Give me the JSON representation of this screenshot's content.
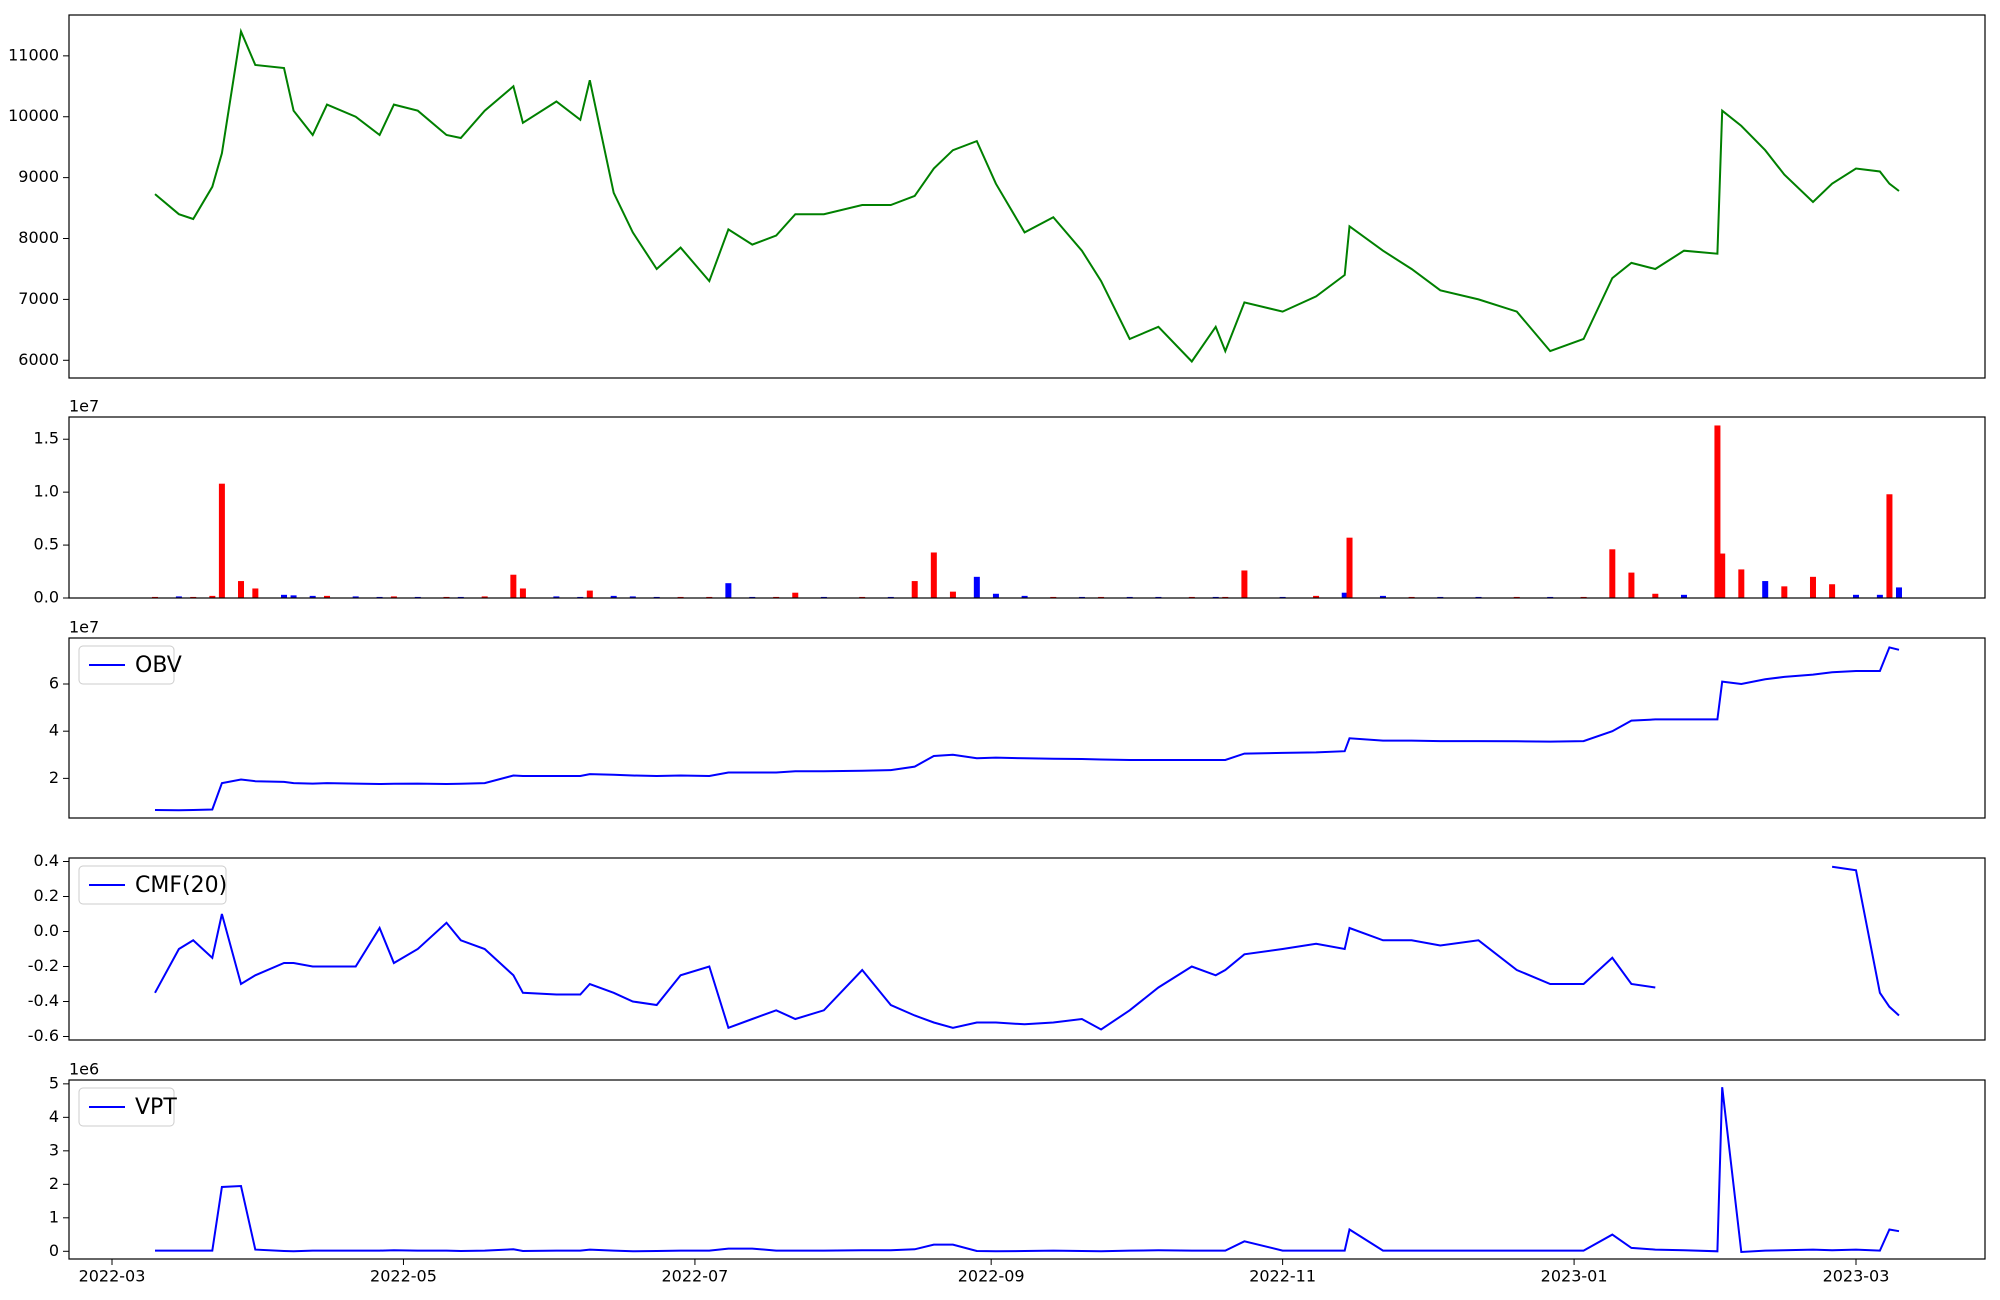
{
  "chart_data": [
    {
      "type": "line",
      "x": [
        "2022-03-10",
        "2022-03-15",
        "2022-03-18",
        "2022-03-22",
        "2022-03-24",
        "2022-03-28",
        "2022-03-31",
        "2022-04-06",
        "2022-04-08",
        "2022-04-12",
        "2022-04-15",
        "2022-04-21",
        "2022-04-26",
        "2022-04-29",
        "2022-05-04",
        "2022-05-10",
        "2022-05-13",
        "2022-05-18",
        "2022-05-24",
        "2022-05-26",
        "2022-06-02",
        "2022-06-07",
        "2022-06-09",
        "2022-06-14",
        "2022-06-18",
        "2022-06-23",
        "2022-06-28",
        "2022-07-04",
        "2022-07-08",
        "2022-07-13",
        "2022-07-18",
        "2022-07-22",
        "2022-07-28",
        "2022-08-05",
        "2022-08-11",
        "2022-08-16",
        "2022-08-20",
        "2022-08-24",
        "2022-08-29",
        "2022-09-02",
        "2022-09-08",
        "2022-09-14",
        "2022-09-20",
        "2022-09-24",
        "2022-09-30",
        "2022-10-06",
        "2022-10-13",
        "2022-10-18",
        "2022-10-20",
        "2022-10-24",
        "2022-11-01",
        "2022-11-08",
        "2022-11-14",
        "2022-11-15",
        "2022-11-22",
        "2022-11-28",
        "2022-12-04",
        "2022-12-12",
        "2022-12-20",
        "2022-12-27",
        "2023-01-03",
        "2023-01-09",
        "2023-01-13",
        "2023-01-18",
        "2023-01-24",
        "2023-01-31",
        "2023-02-01",
        "2023-02-05",
        "2023-02-10",
        "2023-02-14",
        "2023-02-20",
        "2023-02-24",
        "2023-03-01",
        "2023-03-06",
        "2023-03-08",
        "2023-03-10"
      ],
      "series": [
        {
          "color": "#008000",
          "values": [
            8730,
            8400,
            8320,
            8850,
            9400,
            11400,
            10850,
            10800,
            10100,
            9700,
            10200,
            10000,
            9700,
            10200,
            10100,
            9700,
            9650,
            10100,
            10500,
            9900,
            10250,
            9950,
            10600,
            8750,
            8100,
            7500,
            7850,
            7300,
            8150,
            7900,
            8050,
            8400,
            8400,
            8550,
            8550,
            8700,
            9150,
            9450,
            9600,
            8900,
            8100,
            8350,
            7800,
            7300,
            6350,
            6550,
            5980,
            6550,
            6150,
            6950,
            6800,
            7050,
            7400,
            8200,
            7800,
            7500,
            7150,
            7000,
            6800,
            6150,
            6350,
            7350,
            7600,
            7500,
            7800,
            7750,
            10100,
            9850,
            9450,
            9050,
            8600,
            8900,
            9150,
            9100,
            8900,
            8780
          ]
        }
      ],
      "xlim": [
        "2022-02-20",
        "2023-03-28"
      ],
      "ylim": [
        5709,
        11671
      ],
      "yticks": [
        6000,
        7000,
        8000,
        9000,
        10000,
        11000
      ]
    },
    {
      "type": "bar",
      "x": [
        "2022-03-10",
        "2022-03-15",
        "2022-03-18",
        "2022-03-22",
        "2022-03-24",
        "2022-03-28",
        "2022-03-31",
        "2022-04-06",
        "2022-04-08",
        "2022-04-12",
        "2022-04-15",
        "2022-04-21",
        "2022-04-26",
        "2022-04-29",
        "2022-05-04",
        "2022-05-10",
        "2022-05-13",
        "2022-05-18",
        "2022-05-24",
        "2022-05-26",
        "2022-06-02",
        "2022-06-07",
        "2022-06-09",
        "2022-06-14",
        "2022-06-18",
        "2022-06-23",
        "2022-06-28",
        "2022-07-04",
        "2022-07-08",
        "2022-07-13",
        "2022-07-18",
        "2022-07-22",
        "2022-07-28",
        "2022-08-05",
        "2022-08-11",
        "2022-08-16",
        "2022-08-20",
        "2022-08-24",
        "2022-08-29",
        "2022-09-02",
        "2022-09-08",
        "2022-09-14",
        "2022-09-20",
        "2022-09-24",
        "2022-09-30",
        "2022-10-06",
        "2022-10-13",
        "2022-10-18",
        "2022-10-20",
        "2022-10-24",
        "2022-11-01",
        "2022-11-08",
        "2022-11-14",
        "2022-11-15",
        "2022-11-22",
        "2022-11-28",
        "2022-12-04",
        "2022-12-12",
        "2022-12-20",
        "2022-12-27",
        "2023-01-03",
        "2023-01-09",
        "2023-01-13",
        "2023-01-18",
        "2023-01-24",
        "2023-01-31",
        "2023-02-01",
        "2023-02-05",
        "2023-02-10",
        "2023-02-14",
        "2023-02-20",
        "2023-02-24",
        "2023-03-01",
        "2023-03-06",
        "2023-03-08",
        "2023-03-10"
      ],
      "values": [
        100000,
        150000,
        100000,
        200000,
        10800000,
        1600000,
        900000,
        300000,
        250000,
        200000,
        200000,
        150000,
        100000,
        150000,
        100000,
        100000,
        100000,
        150000,
        2200000,
        900000,
        150000,
        100000,
        700000,
        200000,
        150000,
        100000,
        100000,
        100000,
        1400000,
        100000,
        100000,
        500000,
        100000,
        100000,
        100000,
        1600000,
        4300000,
        600000,
        2000000,
        400000,
        200000,
        100000,
        100000,
        100000,
        100000,
        100000,
        100000,
        100000,
        100000,
        2600000,
        100000,
        200000,
        500000,
        5700000,
        200000,
        100000,
        100000,
        100000,
        100000,
        100000,
        100000,
        4600000,
        2400000,
        400000,
        300000,
        16300000,
        4200000,
        2700000,
        1600000,
        1100000,
        2000000,
        1300000,
        300000,
        300000,
        9800000,
        1000000
      ],
      "colors": [
        "#ff0000",
        "#0000ff",
        "#ff0000",
        "#ff0000",
        "#ff0000",
        "#ff0000",
        "#ff0000",
        "#0000ff",
        "#0000ff",
        "#0000ff",
        "#ff0000",
        "#0000ff",
        "#0000ff",
        "#ff0000",
        "#0000ff",
        "#ff0000",
        "#0000ff",
        "#ff0000",
        "#ff0000",
        "#ff0000",
        "#0000ff",
        "#0000ff",
        "#ff0000",
        "#0000ff",
        "#0000ff",
        "#0000ff",
        "#ff0000",
        "#ff0000",
        "#0000ff",
        "#0000ff",
        "#ff0000",
        "#ff0000",
        "#0000ff",
        "#ff0000",
        "#0000ff",
        "#ff0000",
        "#ff0000",
        "#ff0000",
        "#0000ff",
        "#0000ff",
        "#0000ff",
        "#ff0000",
        "#0000ff",
        "#ff0000",
        "#0000ff",
        "#0000ff",
        "#ff0000",
        "#0000ff",
        "#ff0000",
        "#ff0000",
        "#0000ff",
        "#ff0000",
        "#0000ff",
        "#ff0000",
        "#0000ff",
        "#ff0000",
        "#0000ff",
        "#0000ff",
        "#ff0000",
        "#0000ff",
        "#ff0000",
        "#ff0000",
        "#ff0000",
        "#ff0000",
        "#0000ff",
        "#ff0000",
        "#ff0000",
        "#ff0000",
        "#0000ff",
        "#ff0000",
        "#ff0000",
        "#ff0000",
        "#0000ff",
        "#0000ff",
        "#ff0000",
        "#0000ff"
      ],
      "xlim": [
        "2022-02-20",
        "2023-03-28"
      ],
      "ylim": [
        0,
        17100000
      ],
      "offset_label": "1e7",
      "yticks": [
        {
          "value": 0,
          "label": "0.0"
        },
        {
          "value": 5000000,
          "label": "0.5"
        },
        {
          "value": 10000000,
          "label": "1.0"
        },
        {
          "value": 15000000,
          "label": "1.5"
        }
      ]
    },
    {
      "type": "line",
      "x": [
        "2022-03-10",
        "2022-03-15",
        "2022-03-18",
        "2022-03-22",
        "2022-03-24",
        "2022-03-28",
        "2022-03-31",
        "2022-04-06",
        "2022-04-08",
        "2022-04-12",
        "2022-04-15",
        "2022-04-21",
        "2022-04-26",
        "2022-04-29",
        "2022-05-04",
        "2022-05-10",
        "2022-05-13",
        "2022-05-18",
        "2022-05-24",
        "2022-05-26",
        "2022-06-02",
        "2022-06-07",
        "2022-06-09",
        "2022-06-14",
        "2022-06-18",
        "2022-06-23",
        "2022-06-28",
        "2022-07-04",
        "2022-07-08",
        "2022-07-13",
        "2022-07-18",
        "2022-07-22",
        "2022-07-28",
        "2022-08-05",
        "2022-08-11",
        "2022-08-16",
        "2022-08-20",
        "2022-08-24",
        "2022-08-29",
        "2022-09-02",
        "2022-09-08",
        "2022-09-14",
        "2022-09-20",
        "2022-09-24",
        "2022-09-30",
        "2022-10-06",
        "2022-10-13",
        "2022-10-18",
        "2022-10-20",
        "2022-10-24",
        "2022-11-01",
        "2022-11-08",
        "2022-11-14",
        "2022-11-15",
        "2022-11-22",
        "2022-11-28",
        "2022-12-04",
        "2022-12-12",
        "2022-12-20",
        "2022-12-27",
        "2023-01-03",
        "2023-01-09",
        "2023-01-13",
        "2023-01-18",
        "2023-01-24",
        "2023-01-31",
        "2023-02-01",
        "2023-02-05",
        "2023-02-10",
        "2023-02-14",
        "2023-02-20",
        "2023-02-24",
        "2023-03-01",
        "2023-03-06",
        "2023-03-08",
        "2023-03-10"
      ],
      "series": [
        {
          "name": "OBV",
          "color": "#0000ff",
          "values": [
            6600000,
            6500000,
            6600000,
            6800000,
            18000000,
            19500000,
            18800000,
            18500000,
            18000000,
            17800000,
            18000000,
            17800000,
            17600000,
            17700000,
            17800000,
            17600000,
            17700000,
            18000000,
            21200000,
            21000000,
            21000000,
            21000000,
            21800000,
            21500000,
            21200000,
            21000000,
            21200000,
            21000000,
            22500000,
            22500000,
            22500000,
            23000000,
            23000000,
            23200000,
            23500000,
            25000000,
            29500000,
            30000000,
            28500000,
            28800000,
            28500000,
            28300000,
            28200000,
            28000000,
            27800000,
            27800000,
            27800000,
            27800000,
            27800000,
            30500000,
            30800000,
            31000000,
            31500000,
            37000000,
            36000000,
            36000000,
            35800000,
            35800000,
            35700000,
            35600000,
            35800000,
            40000000,
            44500000,
            45000000,
            45000000,
            45000000,
            61000000,
            60000000,
            62000000,
            63000000,
            64000000,
            65000000,
            65500000,
            65500000,
            75500000,
            74500000
          ]
        }
      ],
      "xlim": [
        "2022-02-20",
        "2023-03-28"
      ],
      "ylim": [
        3200000,
        79500000
      ],
      "offset_label": "1e7",
      "yticks": [
        {
          "value": 20000000,
          "label": "2"
        },
        {
          "value": 40000000,
          "label": "4"
        },
        {
          "value": 60000000,
          "label": "6"
        }
      ]
    },
    {
      "type": "line",
      "x": [
        "2022-03-10",
        "2022-03-15",
        "2022-03-18",
        "2022-03-22",
        "2022-03-24",
        "2022-03-28",
        "2022-03-31",
        "2022-04-06",
        "2022-04-08",
        "2022-04-12",
        "2022-04-15",
        "2022-04-21",
        "2022-04-26",
        "2022-04-29",
        "2022-05-04",
        "2022-05-10",
        "2022-05-13",
        "2022-05-18",
        "2022-05-24",
        "2022-05-26",
        "2022-06-02",
        "2022-06-07",
        "2022-06-09",
        "2022-06-14",
        "2022-06-18",
        "2022-06-23",
        "2022-06-28",
        "2022-07-04",
        "2022-07-08",
        "2022-07-13",
        "2022-07-18",
        "2022-07-22",
        "2022-07-28",
        "2022-08-05",
        "2022-08-11",
        "2022-08-16",
        "2022-08-20",
        "2022-08-24",
        "2022-08-29",
        "2022-09-02",
        "2022-09-08",
        "2022-09-14",
        "2022-09-20",
        "2022-09-24",
        "2022-09-30",
        "2022-10-06",
        "2022-10-13",
        "2022-10-18",
        "2022-10-20",
        "2022-10-24",
        "2022-11-01",
        "2022-11-08",
        "2022-11-14",
        "2022-11-15",
        "2022-11-22",
        "2022-11-28",
        "2022-12-04",
        "2022-12-12",
        "2022-12-20",
        "2022-12-27",
        "2023-01-03",
        "2023-01-09",
        "2023-01-13",
        "2023-01-18",
        "2023-01-24",
        "2023-01-31",
        "2023-02-01",
        "2023-02-05",
        "2023-02-10",
        "2023-02-14",
        "2023-02-20",
        "2023-02-24",
        "2023-03-01",
        "2023-03-06",
        "2023-03-08",
        "2023-03-10"
      ],
      "series": [
        {
          "name": "CMF(20)",
          "color": "#0000ff",
          "values": [
            -0.35,
            -0.1,
            -0.05,
            -0.15,
            0.1,
            -0.3,
            -0.25,
            -0.18,
            -0.18,
            -0.2,
            -0.2,
            -0.2,
            0.02,
            -0.18,
            -0.1,
            0.05,
            -0.05,
            -0.1,
            -0.25,
            -0.35,
            -0.36,
            -0.36,
            -0.3,
            -0.35,
            -0.4,
            -0.42,
            -0.25,
            -0.2,
            -0.55,
            -0.5,
            -0.45,
            -0.5,
            -0.45,
            -0.22,
            -0.42,
            -0.48,
            -0.52,
            -0.55,
            -0.52,
            -0.52,
            -0.53,
            -0.52,
            -0.5,
            -0.56,
            -0.45,
            -0.32,
            -0.2,
            -0.25,
            -0.22,
            -0.13,
            -0.1,
            -0.07,
            -0.1,
            0.02,
            -0.05,
            -0.05,
            -0.08,
            -0.05,
            -0.22,
            -0.3,
            -0.3,
            -0.15,
            -0.3,
            -0.32,
            null,
            null,
            null,
            null,
            null,
            null,
            null,
            0.37,
            0.35,
            -0.35,
            -0.43,
            -0.48
          ]
        }
      ],
      "xlim": [
        "2022-02-20",
        "2023-03-28"
      ],
      "ylim": [
        -0.62,
        0.42
      ],
      "yticks": [
        -0.6,
        -0.4,
        -0.2,
        {
          "value": 0,
          "label": "0.0"
        },
        0.2,
        0.4
      ]
    },
    {
      "type": "line",
      "x": [
        "2022-03-10",
        "2022-03-15",
        "2022-03-18",
        "2022-03-22",
        "2022-03-24",
        "2022-03-28",
        "2022-03-31",
        "2022-04-06",
        "2022-04-08",
        "2022-04-12",
        "2022-04-15",
        "2022-04-21",
        "2022-04-26",
        "2022-04-29",
        "2022-05-04",
        "2022-05-10",
        "2022-05-13",
        "2022-05-18",
        "2022-05-24",
        "2022-05-26",
        "2022-06-02",
        "2022-06-07",
        "2022-06-09",
        "2022-06-14",
        "2022-06-18",
        "2022-06-23",
        "2022-06-28",
        "2022-07-04",
        "2022-07-08",
        "2022-07-13",
        "2022-07-18",
        "2022-07-22",
        "2022-07-28",
        "2022-08-05",
        "2022-08-11",
        "2022-08-16",
        "2022-08-20",
        "2022-08-24",
        "2022-08-29",
        "2022-09-02",
        "2022-09-08",
        "2022-09-14",
        "2022-09-20",
        "2022-09-24",
        "2022-09-30",
        "2022-10-06",
        "2022-10-13",
        "2022-10-18",
        "2022-10-20",
        "2022-10-24",
        "2022-11-01",
        "2022-11-08",
        "2022-11-14",
        "2022-11-15",
        "2022-11-22",
        "2022-11-28",
        "2022-12-04",
        "2022-12-12",
        "2022-12-20",
        "2022-12-27",
        "2023-01-03",
        "2023-01-09",
        "2023-01-13",
        "2023-01-18",
        "2023-01-24",
        "2023-01-31",
        "2023-02-01",
        "2023-02-05",
        "2023-02-10",
        "2023-02-14",
        "2023-02-20",
        "2023-02-24",
        "2023-03-01",
        "2023-03-06",
        "2023-03-08",
        "2023-03-10"
      ],
      "series": [
        {
          "name": "VPT",
          "color": "#0000ff",
          "values": [
            20000,
            20000,
            20000,
            20000,
            1920000,
            1950000,
            50000,
            10000,
            0,
            20000,
            20000,
            20000,
            20000,
            30000,
            20000,
            20000,
            10000,
            20000,
            60000,
            10000,
            20000,
            20000,
            50000,
            20000,
            0,
            10000,
            20000,
            20000,
            80000,
            80000,
            20000,
            20000,
            20000,
            30000,
            30000,
            60000,
            200000,
            200000,
            10000,
            0,
            10000,
            20000,
            10000,
            0,
            20000,
            30000,
            20000,
            20000,
            20000,
            300000,
            20000,
            20000,
            20000,
            650000,
            20000,
            20000,
            20000,
            20000,
            20000,
            20000,
            20000,
            500000,
            100000,
            50000,
            30000,
            0,
            4900000,
            -20000,
            20000,
            30000,
            50000,
            30000,
            50000,
            20000,
            650000,
            600000
          ]
        }
      ],
      "xlim": [
        "2022-02-20",
        "2023-03-28"
      ],
      "ylim": [
        -230000,
        5115000
      ],
      "offset_label": "1e6",
      "yticks": [
        {
          "value": 0,
          "label": "0"
        },
        {
          "value": 1000000,
          "label": "1"
        },
        {
          "value": 2000000,
          "label": "2"
        },
        {
          "value": 3000000,
          "label": "3"
        },
        {
          "value": 4000000,
          "label": "4"
        },
        {
          "value": 5000000,
          "label": "5"
        }
      ],
      "xticks": [
        "2022-03",
        "2022-05",
        "2022-07",
        "2022-09",
        "2022-11",
        "2023-01",
        "2023-03"
      ]
    }
  ]
}
